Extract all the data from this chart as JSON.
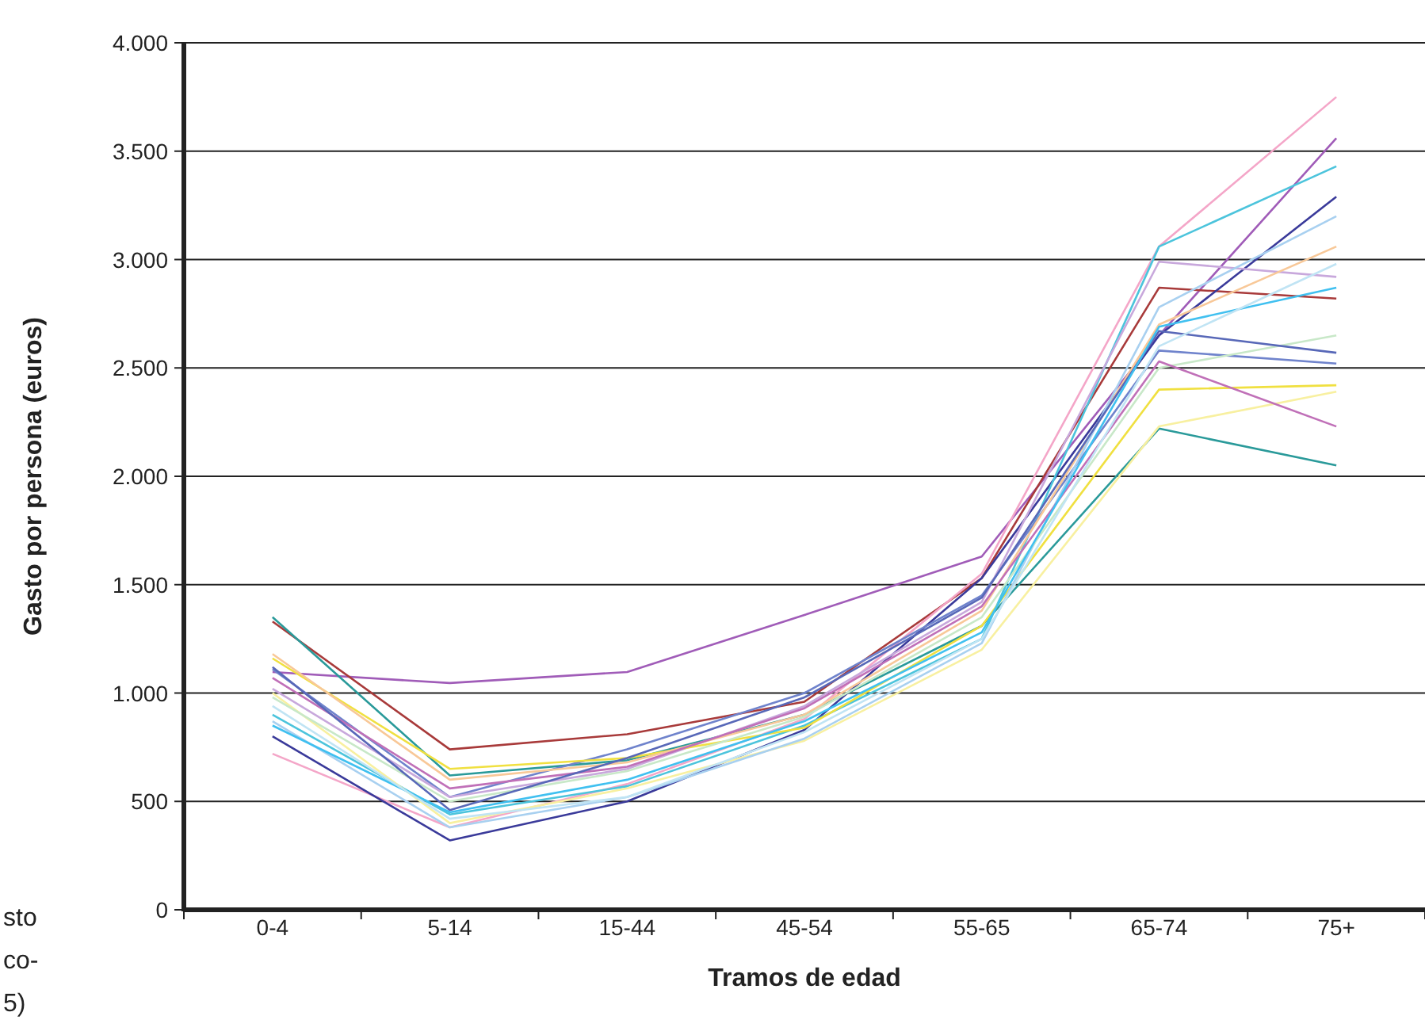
{
  "chart_data": {
    "type": "line",
    "xlabel": "Tramos de edad",
    "ylabel": "Gasto por persona (euros)",
    "categories": [
      "0-4",
      "5-14",
      "15-44",
      "45-54",
      "55-65",
      "65-74",
      "75+"
    ],
    "ylim": [
      0,
      4000
    ],
    "yticks": [
      0,
      500,
      {
        "value": 1000,
        "label": "1.000"
      },
      {
        "value": 1500,
        "label": "1.500"
      },
      {
        "value": 2000,
        "label": "2.000"
      },
      {
        "value": 2500,
        "label": "2.500"
      },
      {
        "value": 3000,
        "label": "3.000"
      },
      {
        "value": 3500,
        "label": "3.500"
      },
      {
        "value": 4000,
        "label": "4.000"
      }
    ],
    "grid": "y",
    "marker": "none",
    "line_style": "solid",
    "annotations": [
      "sto",
      "co-",
      "5)"
    ],
    "series": [
      {
        "color": "#a05cb8",
        "values": [
          1097,
          1046,
          1097,
          1360,
          1630,
          2650,
          3560
        ]
      },
      {
        "color": "#a83a3a",
        "values": [
          1330,
          740,
          810,
          960,
          1530,
          2870,
          2820
        ]
      },
      {
        "color": "#2a9a9a",
        "values": [
          1350,
          620,
          690,
          900,
          1310,
          2220,
          2050
        ]
      },
      {
        "color": "#f4a6c8",
        "values": [
          720,
          380,
          580,
          880,
          1550,
          3060,
          3750
        ]
      },
      {
        "color": "#3a3a9a",
        "values": [
          800,
          320,
          500,
          830,
          1530,
          2650,
          3290
        ]
      },
      {
        "color": "#4cc4dc",
        "values": [
          900,
          440,
          570,
          850,
          1250,
          3060,
          3430
        ]
      },
      {
        "color": "#6f83cc",
        "values": [
          1110,
          520,
          740,
          1000,
          1450,
          2580,
          2520
        ]
      },
      {
        "color": "#c8a8dc",
        "values": [
          1020,
          520,
          650,
          940,
          1420,
          2990,
          2920
        ]
      },
      {
        "color": "#f0e040",
        "values": [
          1160,
          650,
          700,
          840,
          1310,
          2400,
          2420
        ]
      },
      {
        "color": "#f8f0a0",
        "values": [
          1000,
          400,
          560,
          780,
          1200,
          2230,
          2390
        ]
      },
      {
        "color": "#f8c898",
        "values": [
          1180,
          600,
          680,
          900,
          1380,
          2700,
          3060
        ]
      },
      {
        "color": "#a8d0f0",
        "values": [
          870,
          380,
          520,
          790,
          1230,
          2780,
          3200
        ]
      },
      {
        "color": "#c8e8c8",
        "values": [
          980,
          500,
          640,
          890,
          1350,
          2500,
          2650
        ]
      },
      {
        "color": "#c070b8",
        "values": [
          1070,
          560,
          660,
          930,
          1400,
          2530,
          2230
        ]
      },
      {
        "color": "#5868b8",
        "values": [
          1120,
          460,
          700,
          980,
          1440,
          2670,
          2570
        ]
      },
      {
        "color": "#40c0f0",
        "values": [
          850,
          450,
          600,
          870,
          1280,
          2690,
          2870
        ]
      },
      {
        "color": "#c0e4f4",
        "values": [
          940,
          420,
          520,
          820,
          1250,
          2600,
          2980
        ]
      }
    ]
  }
}
